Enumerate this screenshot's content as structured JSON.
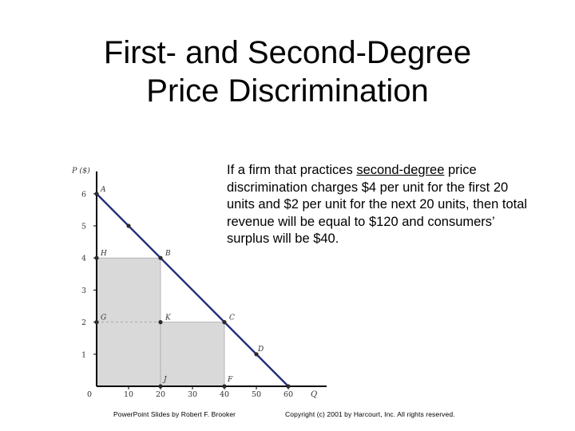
{
  "slide": {
    "title_line1": "First- and Second-Degree",
    "title_line2": "Price Discrimination",
    "body_part1": "If a firm that practices ",
    "body_underlined": "second-degree",
    "body_part2": " price discrimination charges $4 per unit for the first 20 units and $2 per unit for the next 20 units, then total revenue will be equal to $120 and consumers’ surplus will be $40.",
    "footer_left": "PowerPoint Slides by Robert F. Brooker",
    "footer_right": "Copyright (c) 2001 by Harcourt, Inc. All rights reserved."
  },
  "chart_data": {
    "type": "line",
    "ylabel": "P ($)",
    "xlabel": "Q",
    "xlim": [
      0,
      70
    ],
    "ylim": [
      0,
      6.5
    ],
    "x_ticks": [
      0,
      10,
      20,
      30,
      40,
      50,
      60
    ],
    "y_ticks": [
      1,
      2,
      3,
      4,
      5,
      6
    ],
    "series": [
      {
        "x": [
          0,
          60
        ],
        "y": [
          6,
          0
        ]
      }
    ],
    "shaded_regions": [
      {
        "x": [
          0,
          20
        ],
        "y": [
          0,
          4
        ]
      },
      {
        "x": [
          20,
          40
        ],
        "y": [
          0,
          2
        ]
      }
    ],
    "dashed_lines": [
      {
        "x": [
          0,
          20
        ],
        "y": [
          2,
          2
        ]
      }
    ],
    "points": [
      {
        "label": "A",
        "x": 0,
        "y": 6
      },
      {
        "label": "",
        "x": 10,
        "y": 5
      },
      {
        "label": "B",
        "x": 20,
        "y": 4
      },
      {
        "label": "H",
        "x": 0,
        "y": 4
      },
      {
        "label": "C",
        "x": 40,
        "y": 2
      },
      {
        "label": "G",
        "x": 0,
        "y": 2
      },
      {
        "label": "K",
        "x": 20,
        "y": 2
      },
      {
        "label": "D",
        "x": 50,
        "y": 1
      },
      {
        "label": "J",
        "x": 20,
        "y": 0
      },
      {
        "label": "F",
        "x": 40,
        "y": 0
      },
      {
        "label": "",
        "x": 60,
        "y": 0
      }
    ],
    "colors": {
      "demand": "#1f2f7a",
      "shade": "#d9d9d9",
      "axis": "#000000",
      "point": "#2a2a2a"
    }
  }
}
